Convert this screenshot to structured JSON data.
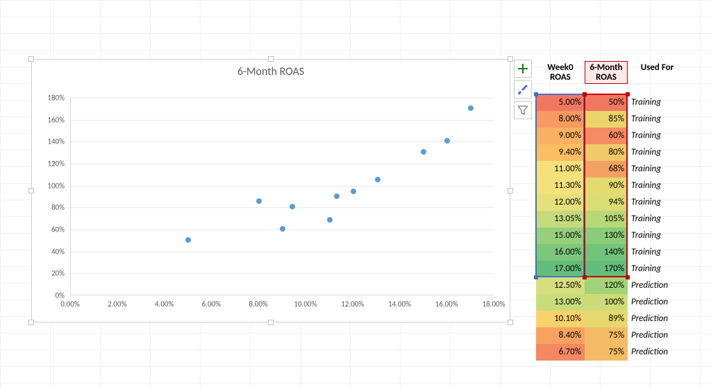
{
  "chart": {
    "title": "6-Month ROAS",
    "type": "scatter",
    "xlim": [
      0,
      18
    ],
    "ylim": [
      0,
      180
    ],
    "xtick_step": 2,
    "ytick_step": 20,
    "xtick_format": "pct2",
    "ytick_format": "pct0",
    "marker_color": "#5b9bd5",
    "marker_radius": 4,
    "grid_color": "#e6e6e6",
    "axis_color": "#d9d9d9",
    "label_color": "#595959",
    "title_fontsize": 16,
    "tick_fontsize": 11,
    "background_color": "#ffffff",
    "points": [
      {
        "x": 5.0,
        "y": 50
      },
      {
        "x": 8.0,
        "y": 85
      },
      {
        "x": 9.0,
        "y": 60
      },
      {
        "x": 9.4,
        "y": 80
      },
      {
        "x": 11.0,
        "y": 68
      },
      {
        "x": 11.3,
        "y": 90
      },
      {
        "x": 12.0,
        "y": 94
      },
      {
        "x": 13.05,
        "y": 105
      },
      {
        "x": 15.0,
        "y": 130
      },
      {
        "x": 16.0,
        "y": 140
      },
      {
        "x": 17.0,
        "y": 170
      }
    ]
  },
  "side_buttons": [
    {
      "name": "chart-elements-button",
      "icon": "plus",
      "color": "#107c10"
    },
    {
      "name": "chart-styles-button",
      "icon": "brush",
      "color": "#4472c4"
    },
    {
      "name": "chart-filters-button",
      "icon": "funnel",
      "color": "#7a7a7a"
    }
  ],
  "table": {
    "columns": [
      {
        "label_line1": "Week0",
        "label_line2": "ROAS"
      },
      {
        "label_line1": "6-Month",
        "label_line2": "ROAS"
      },
      {
        "label_line1": "Used For",
        "label_line2": ""
      }
    ],
    "header_selected_col": 1,
    "header_selected_color": "#c00000",
    "header_selected_bg": "#fde9e9",
    "selection_outline_colors": [
      "#4472c4",
      "#c00000"
    ],
    "rows": [
      {
        "w0": "5.00%",
        "mr": "50%",
        "use": "Training",
        "c0": "#f27761",
        "c1": "#f27761"
      },
      {
        "w0": "8.00%",
        "mr": "85%",
        "use": "Training",
        "c0": "#f79a62",
        "c1": "#ebd46a"
      },
      {
        "w0": "9.00%",
        "mr": "60%",
        "use": "Training",
        "c0": "#fbb162",
        "c1": "#f68b62"
      },
      {
        "w0": "9.40%",
        "mr": "80%",
        "use": "Training",
        "c0": "#fcbd63",
        "c1": "#f0c968"
      },
      {
        "w0": "11.00%",
        "mr": "68%",
        "use": "Training",
        "c0": "#f6e07a",
        "c1": "#f3a163"
      },
      {
        "w0": "11.30%",
        "mr": "90%",
        "use": "Training",
        "c0": "#f3e17b",
        "c1": "#e3da70"
      },
      {
        "w0": "12.00%",
        "mr": "94%",
        "use": "Training",
        "c0": "#e5e07b",
        "c1": "#d9dd74"
      },
      {
        "w0": "13.05%",
        "mr": "105%",
        "use": "Training",
        "c0": "#c5db7b",
        "c1": "#b8d877"
      },
      {
        "w0": "15.00%",
        "mr": "130%",
        "use": "Training",
        "c0": "#97cf7c",
        "c1": "#8bcc7a"
      },
      {
        "w0": "16.00%",
        "mr": "140%",
        "use": "Training",
        "c0": "#7cc77b",
        "c1": "#72c47a"
      },
      {
        "w0": "17.00%",
        "mr": "170%",
        "use": "Training",
        "c0": "#63be7b",
        "c1": "#63be7b"
      },
      {
        "w0": "12.50%",
        "mr": "120%",
        "use": "Prediction",
        "c0": "#d7de7b",
        "c1": "#a3d379"
      },
      {
        "w0": "13.00%",
        "mr": "100%",
        "use": "Prediction",
        "c0": "#c9dc7b",
        "c1": "#cddc77"
      },
      {
        "w0": "10.10%",
        "mr": "89%",
        "use": "Prediction",
        "c0": "#fad26b",
        "c1": "#e6d86f"
      },
      {
        "w0": "8.40%",
        "mr": "75%",
        "use": "Prediction",
        "c0": "#f8a262",
        "c1": "#f4bb66"
      },
      {
        "w0": "6.70%",
        "mr": "75%",
        "use": "Prediction",
        "c0": "#f48861",
        "c1": "#f4bb66"
      }
    ],
    "training_rows": 11
  }
}
